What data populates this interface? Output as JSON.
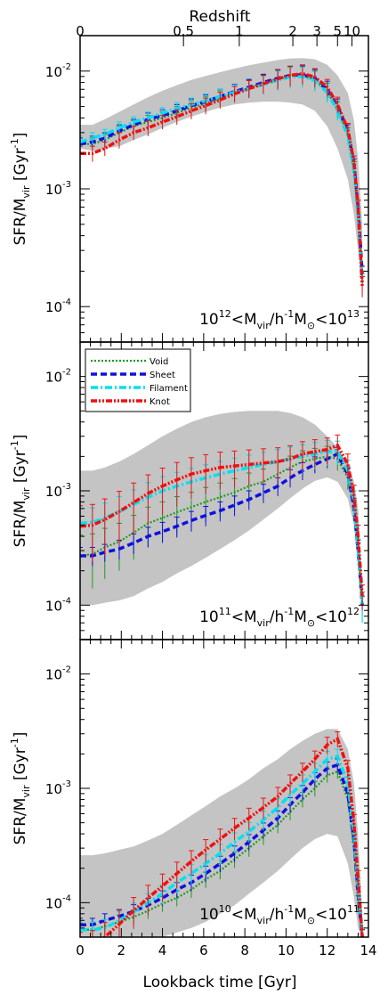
{
  "figure": {
    "top_axis_title": "Redshift",
    "top_ticks": [
      {
        "label": "0",
        "t": 0
      },
      {
        "label": "0.5",
        "t": 5.02
      },
      {
        "label": "1",
        "t": 7.73
      },
      {
        "label": "2",
        "t": 10.33
      },
      {
        "label": "3",
        "t": 11.5
      },
      {
        "label": "5",
        "t": 12.5
      },
      {
        "label": "10",
        "t": 13.2
      }
    ],
    "xlabel": "Lookback time [Gyr]",
    "ylabel_main": "SFR/M",
    "ylabel_sub": "vir",
    "ylabel_unit": " [Gyr",
    "ylabel_exp": "-1",
    "ylabel_close": "]",
    "x_ticks": [
      "0",
      "2",
      "4",
      "6",
      "8",
      "10",
      "12",
      "14"
    ],
    "y_ticks": [
      {
        "base": "10",
        "exp": "-2",
        "value": 0.01
      },
      {
        "base": "10",
        "exp": "-3",
        "value": 0.001
      },
      {
        "base": "10",
        "exp": "-4",
        "value": 0.0001
      }
    ],
    "colors": {
      "Void": "#1f9a1f",
      "Sheet": "#1010e0",
      "Filament": "#00e0f0",
      "Knot": "#f01010",
      "band": "#c4c4c4"
    }
  },
  "chart_data": [
    {
      "type": "line",
      "yscale": "log",
      "xlim": [
        0,
        14
      ],
      "ylim": [
        5e-05,
        0.02
      ],
      "label": {
        "pre": "10",
        "pre_exp": "12",
        "mid": "<M",
        "mid_sub": "vir",
        "mid2": "/h",
        "mid2_exp": "-1",
        "m": "M",
        "m_sub": "⊙",
        "post": "<10",
        "post_exp": "13"
      },
      "x": [
        0,
        0.6,
        1.2,
        1.9,
        2.6,
        3.3,
        4.0,
        4.7,
        5.4,
        6.1,
        6.8,
        7.5,
        8.2,
        8.9,
        9.6,
        10.2,
        10.8,
        11.4,
        12.0,
        12.5,
        13.0,
        13.3,
        13.5,
        13.7
      ],
      "band_low": [
        0.0022,
        0.0021,
        0.0022,
        0.0023,
        0.0026,
        0.0029,
        0.0033,
        0.0037,
        0.0041,
        0.0045,
        0.0049,
        0.0052,
        0.0054,
        0.0055,
        0.0055,
        0.0054,
        0.0052,
        0.0046,
        0.0034,
        0.0022,
        0.0012,
        0.0006,
        0.0003,
        0.00015
      ],
      "band_high": [
        0.0035,
        0.0035,
        0.0039,
        0.0045,
        0.0052,
        0.006,
        0.0068,
        0.0076,
        0.0084,
        0.0091,
        0.0098,
        0.0105,
        0.0112,
        0.0118,
        0.0124,
        0.0128,
        0.0129,
        0.0126,
        0.0113,
        0.0092,
        0.0065,
        0.0038,
        0.0018,
        0.0005
      ],
      "series": [
        {
          "name": "Void",
          "values": [
            0.0024,
            0.0024,
            0.0026,
            0.003,
            0.0034,
            0.0037,
            0.004,
            0.0044,
            0.0049,
            0.0053,
            0.0059,
            0.0066,
            0.0072,
            0.0079,
            0.0086,
            0.0091,
            0.0092,
            0.0084,
            0.0067,
            0.0047,
            0.0029,
            0.0015,
            0.0006,
            0.00017
          ],
          "err": [
            0.0003,
            0.0003,
            0.0003,
            0.0004,
            0.0004,
            0.0005,
            0.0005,
            0.0006,
            0.0007,
            0.0008,
            0.0009,
            0.001,
            0.0012,
            0.0014,
            0.0016,
            0.0018,
            0.0018,
            0.0016,
            0.0012,
            0.0008,
            0.0004,
            0.0002,
            0.0001,
            3e-05
          ]
        },
        {
          "name": "Sheet",
          "values": [
            0.0024,
            0.0025,
            0.0027,
            0.0031,
            0.0035,
            0.0039,
            0.0042,
            0.0046,
            0.0051,
            0.0055,
            0.0061,
            0.0067,
            0.0073,
            0.008,
            0.0087,
            0.0092,
            0.0093,
            0.0087,
            0.007,
            0.005,
            0.0031,
            0.0016,
            0.0007,
            0.00019
          ],
          "err": [
            0.0003,
            0.0003,
            0.0003,
            0.0004,
            0.0004,
            0.0005,
            0.0005,
            0.0006,
            0.0007,
            0.0008,
            0.0009,
            0.001,
            0.0012,
            0.0014,
            0.0016,
            0.0018,
            0.0018,
            0.0016,
            0.0012,
            0.0008,
            0.0004,
            0.0002,
            0.0001,
            3e-05
          ]
        },
        {
          "name": "Filament",
          "values": [
            0.0025,
            0.0027,
            0.0029,
            0.0033,
            0.0037,
            0.004,
            0.0044,
            0.0048,
            0.0052,
            0.0056,
            0.0061,
            0.0066,
            0.0071,
            0.0077,
            0.0084,
            0.0089,
            0.009,
            0.0083,
            0.0066,
            0.0046,
            0.0028,
            0.0014,
            0.0006,
            0.00016
          ],
          "err": [
            0.0003,
            0.0003,
            0.0003,
            0.0004,
            0.0004,
            0.0005,
            0.0005,
            0.0006,
            0.0007,
            0.0008,
            0.0009,
            0.001,
            0.0012,
            0.0014,
            0.0016,
            0.0018,
            0.0018,
            0.0016,
            0.0012,
            0.0008,
            0.0004,
            0.0002,
            0.0001,
            3e-05
          ]
        },
        {
          "name": "Knot",
          "values": [
            0.002,
            0.002,
            0.0022,
            0.0026,
            0.003,
            0.0033,
            0.0037,
            0.0041,
            0.0046,
            0.0051,
            0.0057,
            0.0064,
            0.0071,
            0.0078,
            0.0086,
            0.0092,
            0.0095,
            0.0089,
            0.0073,
            0.0052,
            0.0032,
            0.0017,
            0.0007,
            0.00015
          ],
          "err": [
            0.0003,
            0.0003,
            0.0003,
            0.0004,
            0.0004,
            0.0005,
            0.0005,
            0.0006,
            0.0007,
            0.0008,
            0.0009,
            0.001,
            0.0012,
            0.0014,
            0.0016,
            0.0018,
            0.0018,
            0.0016,
            0.0012,
            0.0008,
            0.0004,
            0.0002,
            0.0001,
            3e-05
          ]
        }
      ]
    },
    {
      "type": "line",
      "yscale": "log",
      "xlim": [
        0,
        14
      ],
      "ylim": [
        5e-05,
        0.02
      ],
      "legend": {
        "placement": "top-left",
        "entries": [
          "Void",
          "Sheet",
          "Filament",
          "Knot"
        ]
      },
      "label": {
        "pre": "10",
        "pre_exp": "11",
        "mid": "<M",
        "mid_sub": "vir",
        "mid2": "/h",
        "mid2_exp": "-1",
        "m": "M",
        "m_sub": "⊙",
        "post": "<10",
        "post_exp": "12"
      },
      "x": [
        0,
        0.6,
        1.2,
        1.9,
        2.6,
        3.3,
        4.0,
        4.7,
        5.4,
        6.1,
        6.8,
        7.5,
        8.2,
        8.9,
        9.6,
        10.2,
        10.8,
        11.4,
        12.0,
        12.5,
        13.0,
        13.3,
        13.5,
        13.7
      ],
      "band_low": [
        0.0001,
        0.0001,
        0.000105,
        0.00011,
        0.00012,
        0.00014,
        0.00016,
        0.00019,
        0.00022,
        0.00026,
        0.00031,
        0.00037,
        0.00045,
        0.00056,
        0.0007,
        0.00086,
        0.00104,
        0.00122,
        0.00131,
        0.0012,
        0.00085,
        0.0005,
        0.00022,
        8e-05
      ],
      "band_high": [
        0.0015,
        0.0015,
        0.0016,
        0.0018,
        0.0021,
        0.0025,
        0.003,
        0.0035,
        0.004,
        0.0044,
        0.0047,
        0.0049,
        0.005,
        0.005,
        0.005,
        0.0048,
        0.0044,
        0.0038,
        0.003,
        0.0024,
        0.0017,
        0.0012,
        0.0007,
        0.00015
      ],
      "series": [
        {
          "name": "Void",
          "values": [
            0.00027,
            0.00028,
            0.00032,
            0.00036,
            0.00043,
            0.00052,
            0.00058,
            0.00065,
            0.00072,
            0.0008,
            0.00088,
            0.00097,
            0.0011,
            0.0012,
            0.0014,
            0.0016,
            0.0018,
            0.0019,
            0.002,
            0.0019,
            0.0013,
            0.0007,
            0.0003,
            0.0001
          ],
          "err": [
            0.00014,
            0.00014,
            0.00015,
            0.00016,
            0.00018,
            0.0002,
            0.00022,
            0.00024,
            0.00025,
            0.00027,
            0.00029,
            0.00031,
            0.00033,
            0.00035,
            0.00038,
            0.00041,
            0.00044,
            0.00045,
            0.00045,
            0.0004,
            0.00028,
            0.00016,
            7e-05,
            3e-05
          ]
        },
        {
          "name": "Sheet",
          "values": [
            0.00027,
            0.00027,
            0.00029,
            0.00031,
            0.00035,
            0.0004,
            0.00044,
            0.00049,
            0.00055,
            0.00061,
            0.00067,
            0.00075,
            0.00084,
            0.00096,
            0.0011,
            0.0013,
            0.0015,
            0.0017,
            0.0019,
            0.0021,
            0.0014,
            0.0007,
            0.0003,
            0.0001
          ],
          "err": [
            5e-05,
            5e-05,
            5e-05,
            6e-05,
            7e-05,
            8e-05,
            9e-05,
            0.0001,
            0.00011,
            0.00012,
            0.00013,
            0.00015,
            0.00016,
            0.00018,
            0.0002,
            0.00023,
            0.00026,
            0.00028,
            0.0003,
            0.0003,
            0.00022,
            0.00012,
            5e-05,
            2e-05
          ]
        },
        {
          "name": "Filament",
          "values": [
            0.00052,
            0.00053,
            0.00058,
            0.00066,
            0.00076,
            0.00088,
            0.001,
            0.0011,
            0.0012,
            0.0013,
            0.0014,
            0.0015,
            0.0016,
            0.0017,
            0.0018,
            0.0019,
            0.002,
            0.0021,
            0.0022,
            0.0022,
            0.0015,
            0.0008,
            0.0003,
            0.0001
          ],
          "err": [
            0.00018,
            0.00018,
            0.0002,
            0.00023,
            0.00026,
            0.0003,
            0.00033,
            0.00035,
            0.00037,
            0.00039,
            0.00041,
            0.00043,
            0.00045,
            0.00047,
            0.00049,
            0.00051,
            0.00053,
            0.00055,
            0.00055,
            0.00052,
            0.00035,
            0.0002,
            8e-05,
            3e-05
          ]
        },
        {
          "name": "Knot",
          "values": [
            0.00049,
            0.0005,
            0.00056,
            0.00066,
            0.00079,
            0.00095,
            0.0011,
            0.00125,
            0.0014,
            0.0015,
            0.0016,
            0.00165,
            0.0017,
            0.00175,
            0.0018,
            0.0019,
            0.0021,
            0.0022,
            0.0023,
            0.0025,
            0.0017,
            0.0009,
            0.0004,
            0.00012
          ],
          "err": [
            0.00025,
            0.00026,
            0.00029,
            0.00033,
            0.00038,
            0.00043,
            0.00048,
            0.00052,
            0.00055,
            0.00057,
            0.00058,
            0.00058,
            0.00058,
            0.00058,
            0.00058,
            0.00058,
            0.00059,
            0.0006,
            0.0006,
            0.00058,
            0.0004,
            0.00022,
            0.0001,
            3e-05
          ]
        }
      ]
    },
    {
      "type": "line",
      "yscale": "log",
      "xlim": [
        0,
        14
      ],
      "ylim": [
        5e-05,
        0.02
      ],
      "label": {
        "pre": "10",
        "pre_exp": "10",
        "mid": "<M",
        "mid_sub": "vir",
        "mid2": "/h",
        "mid2_exp": "-1",
        "m": "M",
        "m_sub": "⊙",
        "post": "<10",
        "post_exp": "11"
      },
      "x": [
        0,
        0.6,
        1.2,
        1.9,
        2.6,
        3.3,
        4.0,
        4.7,
        5.4,
        6.1,
        6.8,
        7.5,
        8.2,
        8.9,
        9.6,
        10.2,
        10.8,
        11.4,
        12.0,
        12.5,
        13.0,
        13.3,
        13.5,
        13.7
      ],
      "band_low": [
        5e-05,
        5e-05,
        5e-05,
        5e-05,
        5e-05,
        5e-05,
        5e-05,
        5.5e-05,
        6e-05,
        6.8e-05,
        8e-05,
        9.5e-05,
        0.00012,
        0.00015,
        0.00019,
        0.00024,
        0.0003,
        0.00036,
        0.0004,
        0.00038,
        0.00022,
        0.00011,
        6e-05,
        5e-05
      ],
      "band_high": [
        0.00026,
        0.00026,
        0.00027,
        0.00029,
        0.00031,
        0.00035,
        0.0004,
        0.00048,
        0.00058,
        0.0007,
        0.00085,
        0.001,
        0.0012,
        0.0015,
        0.0018,
        0.0022,
        0.0026,
        0.003,
        0.0033,
        0.0033,
        0.0022,
        0.0011,
        0.0004,
        8e-05
      ],
      "series": [
        {
          "name": "Void",
          "values": [
            5.8e-05,
            5.8e-05,
            6.2e-05,
            6.8e-05,
            7.5e-05,
            8.5e-05,
            9.8e-05,
            0.00011,
            0.00013,
            0.00016,
            0.00019,
            0.00024,
            0.0003,
            0.00038,
            0.00048,
            0.00062,
            0.0008,
            0.001,
            0.0013,
            0.0014,
            0.0008,
            0.0003,
            0.0001,
            5e-05
          ],
          "err": [
            8e-06,
            8e-06,
            9e-06,
            1e-05,
            1.1e-05,
            1.3e-05,
            1.5e-05,
            1.7e-05,
            2e-05,
            2.5e-05,
            3e-05,
            3.8e-05,
            4.8e-05,
            6e-05,
            7.5e-05,
            9.5e-05,
            0.00012,
            0.00015,
            0.00018,
            0.00019,
            0.00011,
            4e-05,
            1.5e-05,
            8e-06
          ]
        },
        {
          "name": "Sheet",
          "values": [
            6.4e-05,
            6.4e-05,
            7e-05,
            7.6e-05,
            8.4e-05,
            9.5e-05,
            0.00011,
            0.00013,
            0.00015,
            0.00018,
            0.00022,
            0.00027,
            0.00034,
            0.00043,
            0.00055,
            0.00072,
            0.00092,
            0.0012,
            0.0015,
            0.0016,
            0.0009,
            0.00035,
            0.00012,
            5e-05
          ],
          "err": [
            9e-06,
            9e-06,
            1e-05,
            1.1e-05,
            1.2e-05,
            1.4e-05,
            1.7e-05,
            2e-05,
            2.4e-05,
            2.9e-05,
            3.5e-05,
            4.3e-05,
            5.4e-05,
            6.8e-05,
            8.5e-05,
            0.00011,
            0.00014,
            0.00017,
            0.0002,
            0.00021,
            0.00012,
            5e-05,
            1.8e-05,
            8e-06
          ]
        },
        {
          "name": "Filament",
          "values": [
            5.8e-05,
            5.8e-05,
            6e-05,
            7e-05,
            8.3e-05,
            0.0001,
            0.00012,
            0.00015,
            0.00018,
            0.00022,
            0.00027,
            0.00034,
            0.00042,
            0.00053,
            0.00068,
            0.00088,
            0.0011,
            0.0014,
            0.0018,
            0.0019,
            0.0011,
            0.0004,
            0.00014,
            5e-05
          ],
          "err": [
            1e-05,
            1e-05,
            1.1e-05,
            1.3e-05,
            1.6e-05,
            2e-05,
            2.4e-05,
            3e-05,
            3.6e-05,
            4.4e-05,
            5.4e-05,
            6.8e-05,
            8.4e-05,
            0.0001,
            0.00013,
            0.00017,
            0.00021,
            0.00026,
            0.0003,
            0.0003,
            0.00018,
            7e-05,
            2.5e-05,
            1e-05
          ]
        },
        {
          "name": "Knot",
          "values": [
            4e-05,
            4.2e-05,
            5e-05,
            6.5e-05,
            8.5e-05,
            0.00011,
            0.00014,
            0.00018,
            0.00023,
            0.00029,
            0.00036,
            0.00045,
            0.00055,
            0.00068,
            0.00085,
            0.0011,
            0.0014,
            0.0018,
            0.0024,
            0.0027,
            0.0015,
            0.0005,
            0.00016,
            5e-05
          ],
          "err": [
            1.5e-05,
            1.5e-05,
            1.7e-05,
            2.1e-05,
            2.6e-05,
            3.2e-05,
            3.8e-05,
            4.6e-05,
            5.5e-05,
            6.6e-05,
            8e-05,
            9.6e-05,
            0.00012,
            0.00014,
            0.00017,
            0.00021,
            0.00026,
            0.00032,
            0.0004,
            0.00042,
            0.00025,
            9e-05,
            3e-05,
            1e-05
          ]
        }
      ]
    }
  ]
}
